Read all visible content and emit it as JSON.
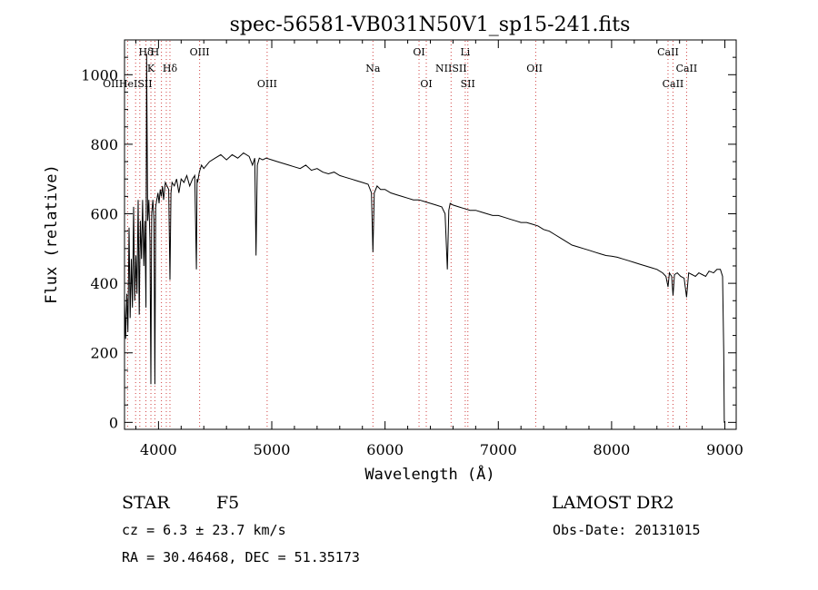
{
  "chart_data": {
    "type": "line",
    "title": "spec-56581-VB031N50V1_sp15-241.fits",
    "xlabel": "Wavelength (Å)",
    "ylabel": "Flux (relative)",
    "xlim": [
      3700,
      9100
    ],
    "ylim": [
      -20,
      1100
    ],
    "xticks": [
      4000,
      5000,
      6000,
      7000,
      8000,
      9000
    ],
    "yticks": [
      0,
      200,
      400,
      600,
      800,
      1000
    ],
    "grid": false,
    "series": [
      {
        "x": [
          3700,
          3710,
          3720,
          3730,
          3740,
          3750,
          3760,
          3770,
          3780,
          3790,
          3800,
          3810,
          3820,
          3830,
          3840,
          3850,
          3860,
          3870,
          3880,
          3889,
          3895,
          3905,
          3915,
          3925,
          3933,
          3940,
          3950,
          3960,
          3968,
          3975,
          3985,
          3995,
          4005,
          4015,
          4025,
          4035,
          4045,
          4060,
          4075,
          4090,
          4101,
          4110,
          4120,
          4140,
          4160,
          4180,
          4200,
          4225,
          4250,
          4275,
          4300,
          4320,
          4335,
          4340,
          4345,
          4360,
          4380,
          4400,
          4450,
          4500,
          4550,
          4600,
          4650,
          4700,
          4750,
          4800,
          4830,
          4850,
          4861,
          4872,
          4890,
          4920,
          4950,
          5000,
          5050,
          5100,
          5150,
          5200,
          5250,
          5300,
          5350,
          5400,
          5450,
          5500,
          5550,
          5600,
          5650,
          5700,
          5750,
          5800,
          5850,
          5880,
          5893,
          5905,
          5930,
          5960,
          6000,
          6050,
          6100,
          6150,
          6200,
          6250,
          6300,
          6350,
          6400,
          6450,
          6500,
          6530,
          6550,
          6563,
          6575,
          6600,
          6650,
          6700,
          6750,
          6800,
          6850,
          6900,
          6950,
          7000,
          7050,
          7100,
          7150,
          7200,
          7250,
          7300,
          7350,
          7400,
          7450,
          7500,
          7550,
          7600,
          7650,
          7700,
          7750,
          7800,
          7850,
          7900,
          7950,
          8000,
          8050,
          8100,
          8150,
          8200,
          8250,
          8300,
          8350,
          8400,
          8450,
          8480,
          8498,
          8510,
          8530,
          8542,
          8555,
          8580,
          8610,
          8640,
          8662,
          8680,
          8710,
          8740,
          8770,
          8800,
          8830,
          8860,
          8900,
          8930,
          8960,
          8980,
          8990,
          8995,
          9000
        ],
        "y": [
          350,
          240,
          370,
          260,
          560,
          300,
          470,
          330,
          620,
          350,
          480,
          370,
          640,
          310,
          580,
          470,
          640,
          450,
          580,
          330,
          1060,
          580,
          640,
          520,
          110,
          600,
          640,
          580,
          110,
          620,
          640,
          660,
          630,
          670,
          650,
          680,
          640,
          690,
          680,
          670,
          410,
          660,
          690,
          680,
          700,
          660,
          700,
          690,
          710,
          680,
          700,
          710,
          440,
          700,
          690,
          720,
          740,
          730,
          750,
          760,
          770,
          755,
          770,
          760,
          775,
          765,
          740,
          760,
          480,
          740,
          760,
          755,
          760,
          755,
          750,
          745,
          740,
          735,
          730,
          740,
          725,
          730,
          720,
          715,
          720,
          710,
          705,
          700,
          695,
          690,
          685,
          660,
          490,
          660,
          680,
          670,
          670,
          660,
          655,
          650,
          645,
          640,
          640,
          635,
          630,
          625,
          620,
          600,
          440,
          610,
          630,
          625,
          620,
          615,
          610,
          610,
          605,
          600,
          595,
          595,
          590,
          585,
          580,
          575,
          575,
          570,
          565,
          555,
          550,
          540,
          530,
          520,
          510,
          505,
          500,
          495,
          490,
          485,
          480,
          478,
          475,
          470,
          465,
          460,
          455,
          450,
          445,
          440,
          430,
          420,
          390,
          430,
          420,
          365,
          425,
          430,
          420,
          415,
          360,
          430,
          425,
          420,
          430,
          425,
          420,
          435,
          430,
          440,
          440,
          420,
          200,
          0,
          0
        ]
      }
    ],
    "lines": [
      {
        "name": "Hδ",
        "x": 3889,
        "row": 1
      },
      {
        "name": "H",
        "x": 3968,
        "row": 1
      },
      {
        "name": "OIII",
        "x": 4363,
        "row": 1
      },
      {
        "name": "OI",
        "x": 6300,
        "row": 1
      },
      {
        "name": "Li",
        "x": 6708,
        "row": 1
      },
      {
        "name": "CaII",
        "x": 8498,
        "row": 1
      },
      {
        "name": "K",
        "x": 3933,
        "row": 2
      },
      {
        "name": "Hδ",
        "x": 4101,
        "row": 2
      },
      {
        "name": "OIII",
        "x": 4959,
        "row": 3
      },
      {
        "name": "Na",
        "x": 5893,
        "row": 2
      },
      {
        "name": "NIISII",
        "x": 6583,
        "row": 2
      },
      {
        "name": "OII",
        "x": 7320,
        "row": 2
      },
      {
        "name": "CaII",
        "x": 8662,
        "row": 2
      },
      {
        "name": "OIIHeISII",
        "x": 3727,
        "row": 3
      },
      {
        "name": "OI",
        "x": 6364,
        "row": 3
      },
      {
        "name": "SII",
        "x": 6731,
        "row": 3
      },
      {
        "name": "CaII",
        "x": 8542,
        "row": 3
      }
    ],
    "line_marks_x": [
      3727,
      3798,
      3835,
      3889,
      3933,
      3968,
      4026,
      4069,
      4101,
      4363,
      4959,
      5893,
      6300,
      6364,
      6583,
      6708,
      6731,
      7330,
      8498,
      8542,
      8662
    ]
  },
  "info": {
    "object": "STAR",
    "subclass": "F5",
    "survey": "LAMOST DR2",
    "cz": "cz = 6.3 ± 23.7 km/s",
    "obs_date": "Obs-Date: 20131015",
    "coords": "RA =  30.46468, DEC =  51.35173"
  }
}
